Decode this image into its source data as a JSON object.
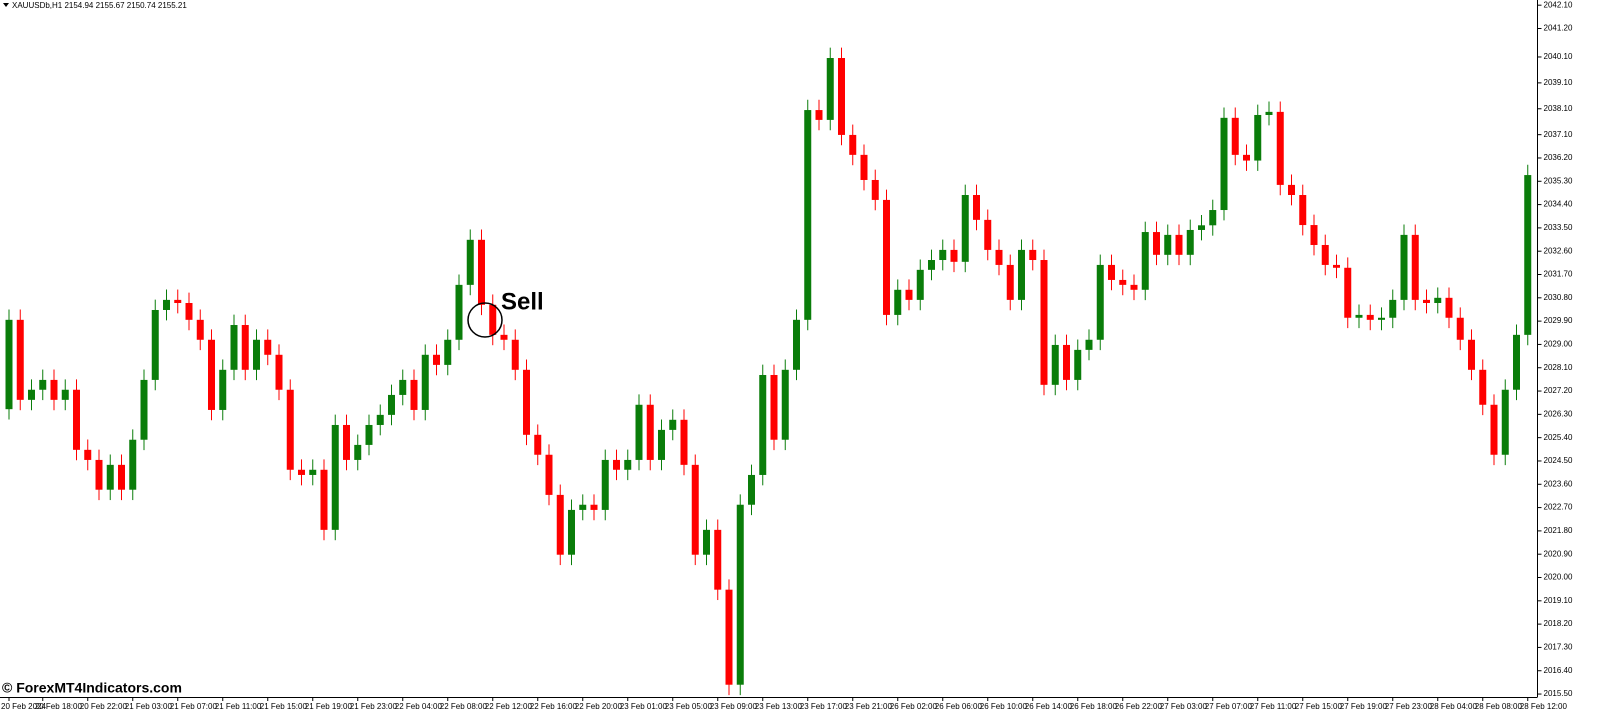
{
  "chart_data": {
    "type": "candlestick",
    "title": "XAUUSDb,H1  2154.94 2155.67 2150.74 2155.21",
    "annotation": "Sell",
    "watermark": "© ForexMT4Indicators.com",
    "up_color": "#0a7d0a",
    "down_color": "#ff0000",
    "ylim": [
      2015.27,
      2042.3
    ],
    "yticks": [
      {
        "value": 2042.1,
        "label": "2042.10"
      },
      {
        "value": 2041.2,
        "label": "2041.20"
      },
      {
        "value": 2040.1,
        "label": "2040.10"
      },
      {
        "value": 2039.1,
        "label": "2039.10"
      },
      {
        "value": 2038.1,
        "label": "2038.10"
      },
      {
        "value": 2037.1,
        "label": "2037.10"
      },
      {
        "value": 2036.2,
        "label": "2036.20"
      },
      {
        "value": 2035.3,
        "label": "2035.30"
      },
      {
        "value": 2034.4,
        "label": "2034.40"
      },
      {
        "value": 2033.5,
        "label": "2033.50"
      },
      {
        "value": 2032.6,
        "label": "2032.60"
      },
      {
        "value": 2031.7,
        "label": "2031.70"
      },
      {
        "value": 2030.8,
        "label": "2030.80"
      },
      {
        "value": 2029.9,
        "label": "2029.90"
      },
      {
        "value": 2029,
        "label": "2029.00"
      },
      {
        "value": 2028.1,
        "label": "2028.10"
      },
      {
        "value": 2027.2,
        "label": "2027.20"
      },
      {
        "value": 2026.3,
        "label": "2026.30"
      },
      {
        "value": 2025.4,
        "label": "2025.40"
      },
      {
        "value": 2024.5,
        "label": "2024.50"
      },
      {
        "value": 2023.6,
        "label": "2023.60"
      },
      {
        "value": 2022.7,
        "label": "2022.70"
      },
      {
        "value": 2021.8,
        "label": "2021.80"
      },
      {
        "value": 2020.9,
        "label": "2020.90"
      },
      {
        "value": 2020,
        "label": "2020.00"
      },
      {
        "value": 2019.1,
        "label": "2019.10"
      },
      {
        "value": 2018.2,
        "label": "2018.20"
      },
      {
        "value": 2017.3,
        "label": "2017.30"
      },
      {
        "value": 2016.4,
        "label": "2016.40"
      },
      {
        "value": 2015.5,
        "label": "2015.50"
      }
    ],
    "categories": [
      "20 Feb 2024",
      null,
      null,
      "20 Feb 18:00",
      null,
      null,
      null,
      "20 Feb 22:00",
      null,
      null,
      null,
      "21 Feb 03:00",
      null,
      null,
      null,
      "21 Feb 07:00",
      null,
      null,
      null,
      "21 Feb 11:00",
      null,
      null,
      null,
      "21 Feb 15:00",
      null,
      null,
      null,
      "21 Feb 19:00",
      null,
      null,
      null,
      "21 Feb 23:00",
      null,
      null,
      null,
      "22 Feb 04:00",
      null,
      null,
      null,
      "22 Feb 08:00",
      null,
      null,
      null,
      "22 Feb 12:00",
      null,
      null,
      null,
      "22 Feb 16:00",
      null,
      null,
      null,
      "22 Feb 20:00",
      null,
      null,
      null,
      "23 Feb 01:00",
      null,
      null,
      null,
      "23 Feb 05:00",
      null,
      null,
      null,
      "23 Feb 09:00",
      null,
      null,
      null,
      "23 Feb 13:00",
      null,
      null,
      null,
      "23 Feb 17:00",
      null,
      null,
      null,
      "23 Feb 21:00",
      null,
      null,
      null,
      "26 Feb 02:00",
      null,
      null,
      null,
      "26 Feb 06:00",
      null,
      null,
      null,
      "26 Feb 10:00",
      null,
      null,
      null,
      "26 Feb 14:00",
      null,
      null,
      null,
      "26 Feb 18:00",
      null,
      null,
      null,
      "26 Feb 22:00",
      null,
      null,
      null,
      "27 Feb 03:00",
      null,
      null,
      null,
      "27 Feb 07:00",
      null,
      null,
      null,
      "27 Feb 11:00",
      null,
      null,
      null,
      "27 Feb 15:00",
      null,
      null,
      null,
      "27 Feb 19:00",
      null,
      null,
      null,
      "27 Feb 23:00",
      null,
      null,
      null,
      "28 Feb 04:00",
      null,
      null,
      null,
      "28 Feb 08:00",
      null,
      null,
      null,
      "28 Feb 12:00"
    ],
    "ohlc": [
      [
        2026.5,
        2030.35,
        2026.1,
        2029.95
      ],
      [
        2029.95,
        2030.35,
        2026.46,
        2026.86
      ],
      [
        2026.86,
        2027.65,
        2026.46,
        2027.25
      ],
      [
        2027.25,
        2028.03,
        2026.85,
        2027.63
      ],
      [
        2027.63,
        2028.03,
        2026.46,
        2026.86
      ],
      [
        2026.86,
        2027.65,
        2026.46,
        2027.25
      ],
      [
        2027.25,
        2027.65,
        2024.53,
        2024.93
      ],
      [
        2024.93,
        2025.33,
        2024.14,
        2024.54
      ],
      [
        2024.54,
        2024.94,
        2022.99,
        2023.39
      ],
      [
        2023.39,
        2024.75,
        2022.99,
        2024.35
      ],
      [
        2024.35,
        2024.75,
        2022.99,
        2023.39
      ],
      [
        2023.39,
        2025.72,
        2022.99,
        2025.32
      ],
      [
        2025.32,
        2028.03,
        2024.92,
        2027.63
      ],
      [
        2027.63,
        2030.73,
        2027.23,
        2030.33
      ],
      [
        2030.33,
        2031.12,
        2029.93,
        2030.72
      ],
      [
        2030.72,
        2031.12,
        2030.2,
        2030.6
      ],
      [
        2030.6,
        2031.0,
        2029.55,
        2029.95
      ],
      [
        2029.95,
        2030.35,
        2028.78,
        2029.18
      ],
      [
        2029.18,
        2029.58,
        2026.07,
        2026.47
      ],
      [
        2026.47,
        2028.42,
        2026.07,
        2028.02
      ],
      [
        2028.02,
        2030.15,
        2027.62,
        2029.75
      ],
      [
        2029.75,
        2030.15,
        2027.62,
        2028.02
      ],
      [
        2028.02,
        2029.58,
        2027.62,
        2029.18
      ],
      [
        2029.18,
        2029.58,
        2028.2,
        2028.6
      ],
      [
        2028.6,
        2029.0,
        2026.85,
        2027.25
      ],
      [
        2027.25,
        2027.65,
        2023.76,
        2024.16
      ],
      [
        2024.16,
        2024.56,
        2023.56,
        2023.96
      ],
      [
        2023.96,
        2024.56,
        2023.56,
        2024.16
      ],
      [
        2024.16,
        2024.56,
        2021.44,
        2021.84
      ],
      [
        2021.84,
        2026.29,
        2021.44,
        2025.89
      ],
      [
        2025.89,
        2026.29,
        2024.14,
        2024.54
      ],
      [
        2024.54,
        2025.52,
        2024.14,
        2025.12
      ],
      [
        2025.12,
        2026.29,
        2024.72,
        2025.89
      ],
      [
        2025.89,
        2026.68,
        2025.49,
        2026.28
      ],
      [
        2026.28,
        2027.45,
        2025.88,
        2027.05
      ],
      [
        2027.05,
        2028.03,
        2026.65,
        2027.63
      ],
      [
        2027.63,
        2028.03,
        2026.07,
        2026.47
      ],
      [
        2026.47,
        2029.0,
        2026.07,
        2028.6
      ],
      [
        2028.6,
        2029.0,
        2027.81,
        2028.21
      ],
      [
        2028.21,
        2029.58,
        2027.81,
        2029.18
      ],
      [
        2029.18,
        2031.7,
        2028.78,
        2031.3
      ],
      [
        2031.3,
        2033.44,
        2030.9,
        2033.04
      ],
      [
        2033.04,
        2033.44,
        2030.13,
        2030.53
      ],
      [
        2030.53,
        2030.93,
        2028.97,
        2029.37
      ],
      [
        2029.37,
        2029.77,
        2028.78,
        2029.18
      ],
      [
        2029.18,
        2029.58,
        2027.62,
        2028.02
      ],
      [
        2028.02,
        2028.42,
        2025.11,
        2025.51
      ],
      [
        2025.51,
        2025.91,
        2024.34,
        2024.74
      ],
      [
        2024.74,
        2025.14,
        2022.79,
        2023.19
      ],
      [
        2023.19,
        2023.59,
        2020.48,
        2020.88
      ],
      [
        2020.88,
        2023.01,
        2020.48,
        2022.61
      ],
      [
        2022.61,
        2023.21,
        2022.21,
        2022.81
      ],
      [
        2022.81,
        2023.21,
        2022.21,
        2022.61
      ],
      [
        2022.61,
        2024.94,
        2022.21,
        2024.54
      ],
      [
        2024.54,
        2024.94,
        2023.76,
        2024.16
      ],
      [
        2024.16,
        2024.94,
        2023.76,
        2024.54
      ],
      [
        2024.54,
        2027.07,
        2024.14,
        2026.67
      ],
      [
        2026.67,
        2027.07,
        2024.14,
        2024.54
      ],
      [
        2024.54,
        2026.1,
        2024.14,
        2025.7
      ],
      [
        2025.7,
        2026.49,
        2025.3,
        2026.09
      ],
      [
        2026.09,
        2026.49,
        2023.95,
        2024.35
      ],
      [
        2024.35,
        2024.75,
        2020.48,
        2020.88
      ],
      [
        2020.88,
        2022.24,
        2020.48,
        2021.84
      ],
      [
        2021.84,
        2022.24,
        2019.13,
        2019.53
      ],
      [
        2019.53,
        2019.93,
        2015.46,
        2015.86
      ],
      [
        2015.86,
        2023.21,
        2015.46,
        2022.81
      ],
      [
        2022.81,
        2024.36,
        2022.41,
        2023.96
      ],
      [
        2023.96,
        2028.22,
        2023.56,
        2027.82
      ],
      [
        2027.82,
        2028.22,
        2024.92,
        2025.32
      ],
      [
        2025.32,
        2028.42,
        2024.92,
        2028.02
      ],
      [
        2028.02,
        2030.35,
        2027.62,
        2029.95
      ],
      [
        2029.95,
        2038.45,
        2029.55,
        2038.05
      ],
      [
        2038.05,
        2038.45,
        2037.27,
        2037.67
      ],
      [
        2037.67,
        2040.46,
        2037.27,
        2040.06
      ],
      [
        2040.06,
        2040.46,
        2036.69,
        2037.09
      ],
      [
        2037.09,
        2037.49,
        2035.92,
        2036.32
      ],
      [
        2036.32,
        2036.72,
        2034.95,
        2035.35
      ],
      [
        2035.35,
        2035.75,
        2034.18,
        2034.58
      ],
      [
        2034.58,
        2034.98,
        2029.74,
        2030.14
      ],
      [
        2030.14,
        2031.51,
        2029.74,
        2031.11
      ],
      [
        2031.11,
        2031.51,
        2030.32,
        2030.72
      ],
      [
        2030.72,
        2032.28,
        2030.32,
        2031.88
      ],
      [
        2031.88,
        2032.66,
        2031.48,
        2032.26
      ],
      [
        2032.26,
        2033.05,
        2031.86,
        2032.65
      ],
      [
        2032.65,
        2033.05,
        2031.79,
        2032.19
      ],
      [
        2032.19,
        2035.17,
        2031.79,
        2034.77
      ],
      [
        2034.77,
        2035.17,
        2033.41,
        2033.81
      ],
      [
        2033.81,
        2034.21,
        2032.25,
        2032.65
      ],
      [
        2032.65,
        2033.05,
        2031.67,
        2032.07
      ],
      [
        2032.07,
        2032.47,
        2030.32,
        2030.72
      ],
      [
        2030.72,
        2033.05,
        2030.32,
        2032.65
      ],
      [
        2032.65,
        2033.05,
        2031.86,
        2032.26
      ],
      [
        2032.26,
        2032.66,
        2027.04,
        2027.44
      ],
      [
        2027.44,
        2029.38,
        2027.04,
        2028.98
      ],
      [
        2028.98,
        2029.38,
        2027.23,
        2027.63
      ],
      [
        2027.63,
        2029.19,
        2027.23,
        2028.79
      ],
      [
        2028.79,
        2029.58,
        2028.39,
        2029.18
      ],
      [
        2029.18,
        2032.47,
        2028.78,
        2032.07
      ],
      [
        2032.07,
        2032.47,
        2031.09,
        2031.49
      ],
      [
        2031.49,
        2031.89,
        2030.9,
        2031.3
      ],
      [
        2031.3,
        2031.7,
        2030.71,
        2031.11
      ],
      [
        2031.11,
        2033.74,
        2030.71,
        2033.34
      ],
      [
        2033.34,
        2033.74,
        2032.06,
        2032.46
      ],
      [
        2032.46,
        2033.63,
        2032.06,
        2033.23
      ],
      [
        2033.23,
        2033.63,
        2032.06,
        2032.46
      ],
      [
        2032.46,
        2033.82,
        2032.06,
        2033.42
      ],
      [
        2033.42,
        2034.0,
        2033.02,
        2033.6
      ],
      [
        2033.6,
        2034.59,
        2033.2,
        2034.19
      ],
      [
        2034.19,
        2038.15,
        2033.79,
        2037.75
      ],
      [
        2037.75,
        2038.15,
        2035.92,
        2036.32
      ],
      [
        2036.32,
        2036.72,
        2035.7,
        2036.1
      ],
      [
        2036.1,
        2038.26,
        2035.7,
        2037.86
      ],
      [
        2037.86,
        2038.38,
        2037.46,
        2037.98
      ],
      [
        2037.98,
        2038.38,
        2034.76,
        2035.16
      ],
      [
        2035.16,
        2035.56,
        2034.37,
        2034.77
      ],
      [
        2034.77,
        2035.17,
        2033.21,
        2033.61
      ],
      [
        2033.61,
        2034.01,
        2032.44,
        2032.84
      ],
      [
        2032.84,
        2033.24,
        2031.67,
        2032.07
      ],
      [
        2032.07,
        2032.47,
        2031.56,
        2031.96
      ],
      [
        2031.96,
        2032.36,
        2029.63,
        2030.03
      ],
      [
        2030.03,
        2030.54,
        2029.63,
        2030.14
      ],
      [
        2030.14,
        2030.54,
        2029.55,
        2029.95
      ],
      [
        2029.95,
        2030.43,
        2029.55,
        2030.03
      ],
      [
        2030.03,
        2031.12,
        2029.63,
        2030.72
      ],
      [
        2030.72,
        2033.63,
        2030.32,
        2033.23
      ],
      [
        2033.23,
        2033.63,
        2030.32,
        2030.72
      ],
      [
        2030.72,
        2031.12,
        2030.2,
        2030.6
      ],
      [
        2030.6,
        2031.2,
        2030.2,
        2030.8
      ],
      [
        2030.8,
        2031.2,
        2029.63,
        2030.03
      ],
      [
        2030.03,
        2030.43,
        2028.78,
        2029.18
      ],
      [
        2029.18,
        2029.58,
        2027.62,
        2028.02
      ],
      [
        2028.02,
        2028.42,
        2026.27,
        2026.67
      ],
      [
        2026.67,
        2027.07,
        2024.34,
        2024.74
      ],
      [
        2024.74,
        2027.65,
        2024.34,
        2027.25
      ],
      [
        2027.25,
        2029.77,
        2026.85,
        2029.37
      ],
      [
        2029.37,
        2035.94,
        2028.97,
        2035.54
      ]
    ]
  }
}
